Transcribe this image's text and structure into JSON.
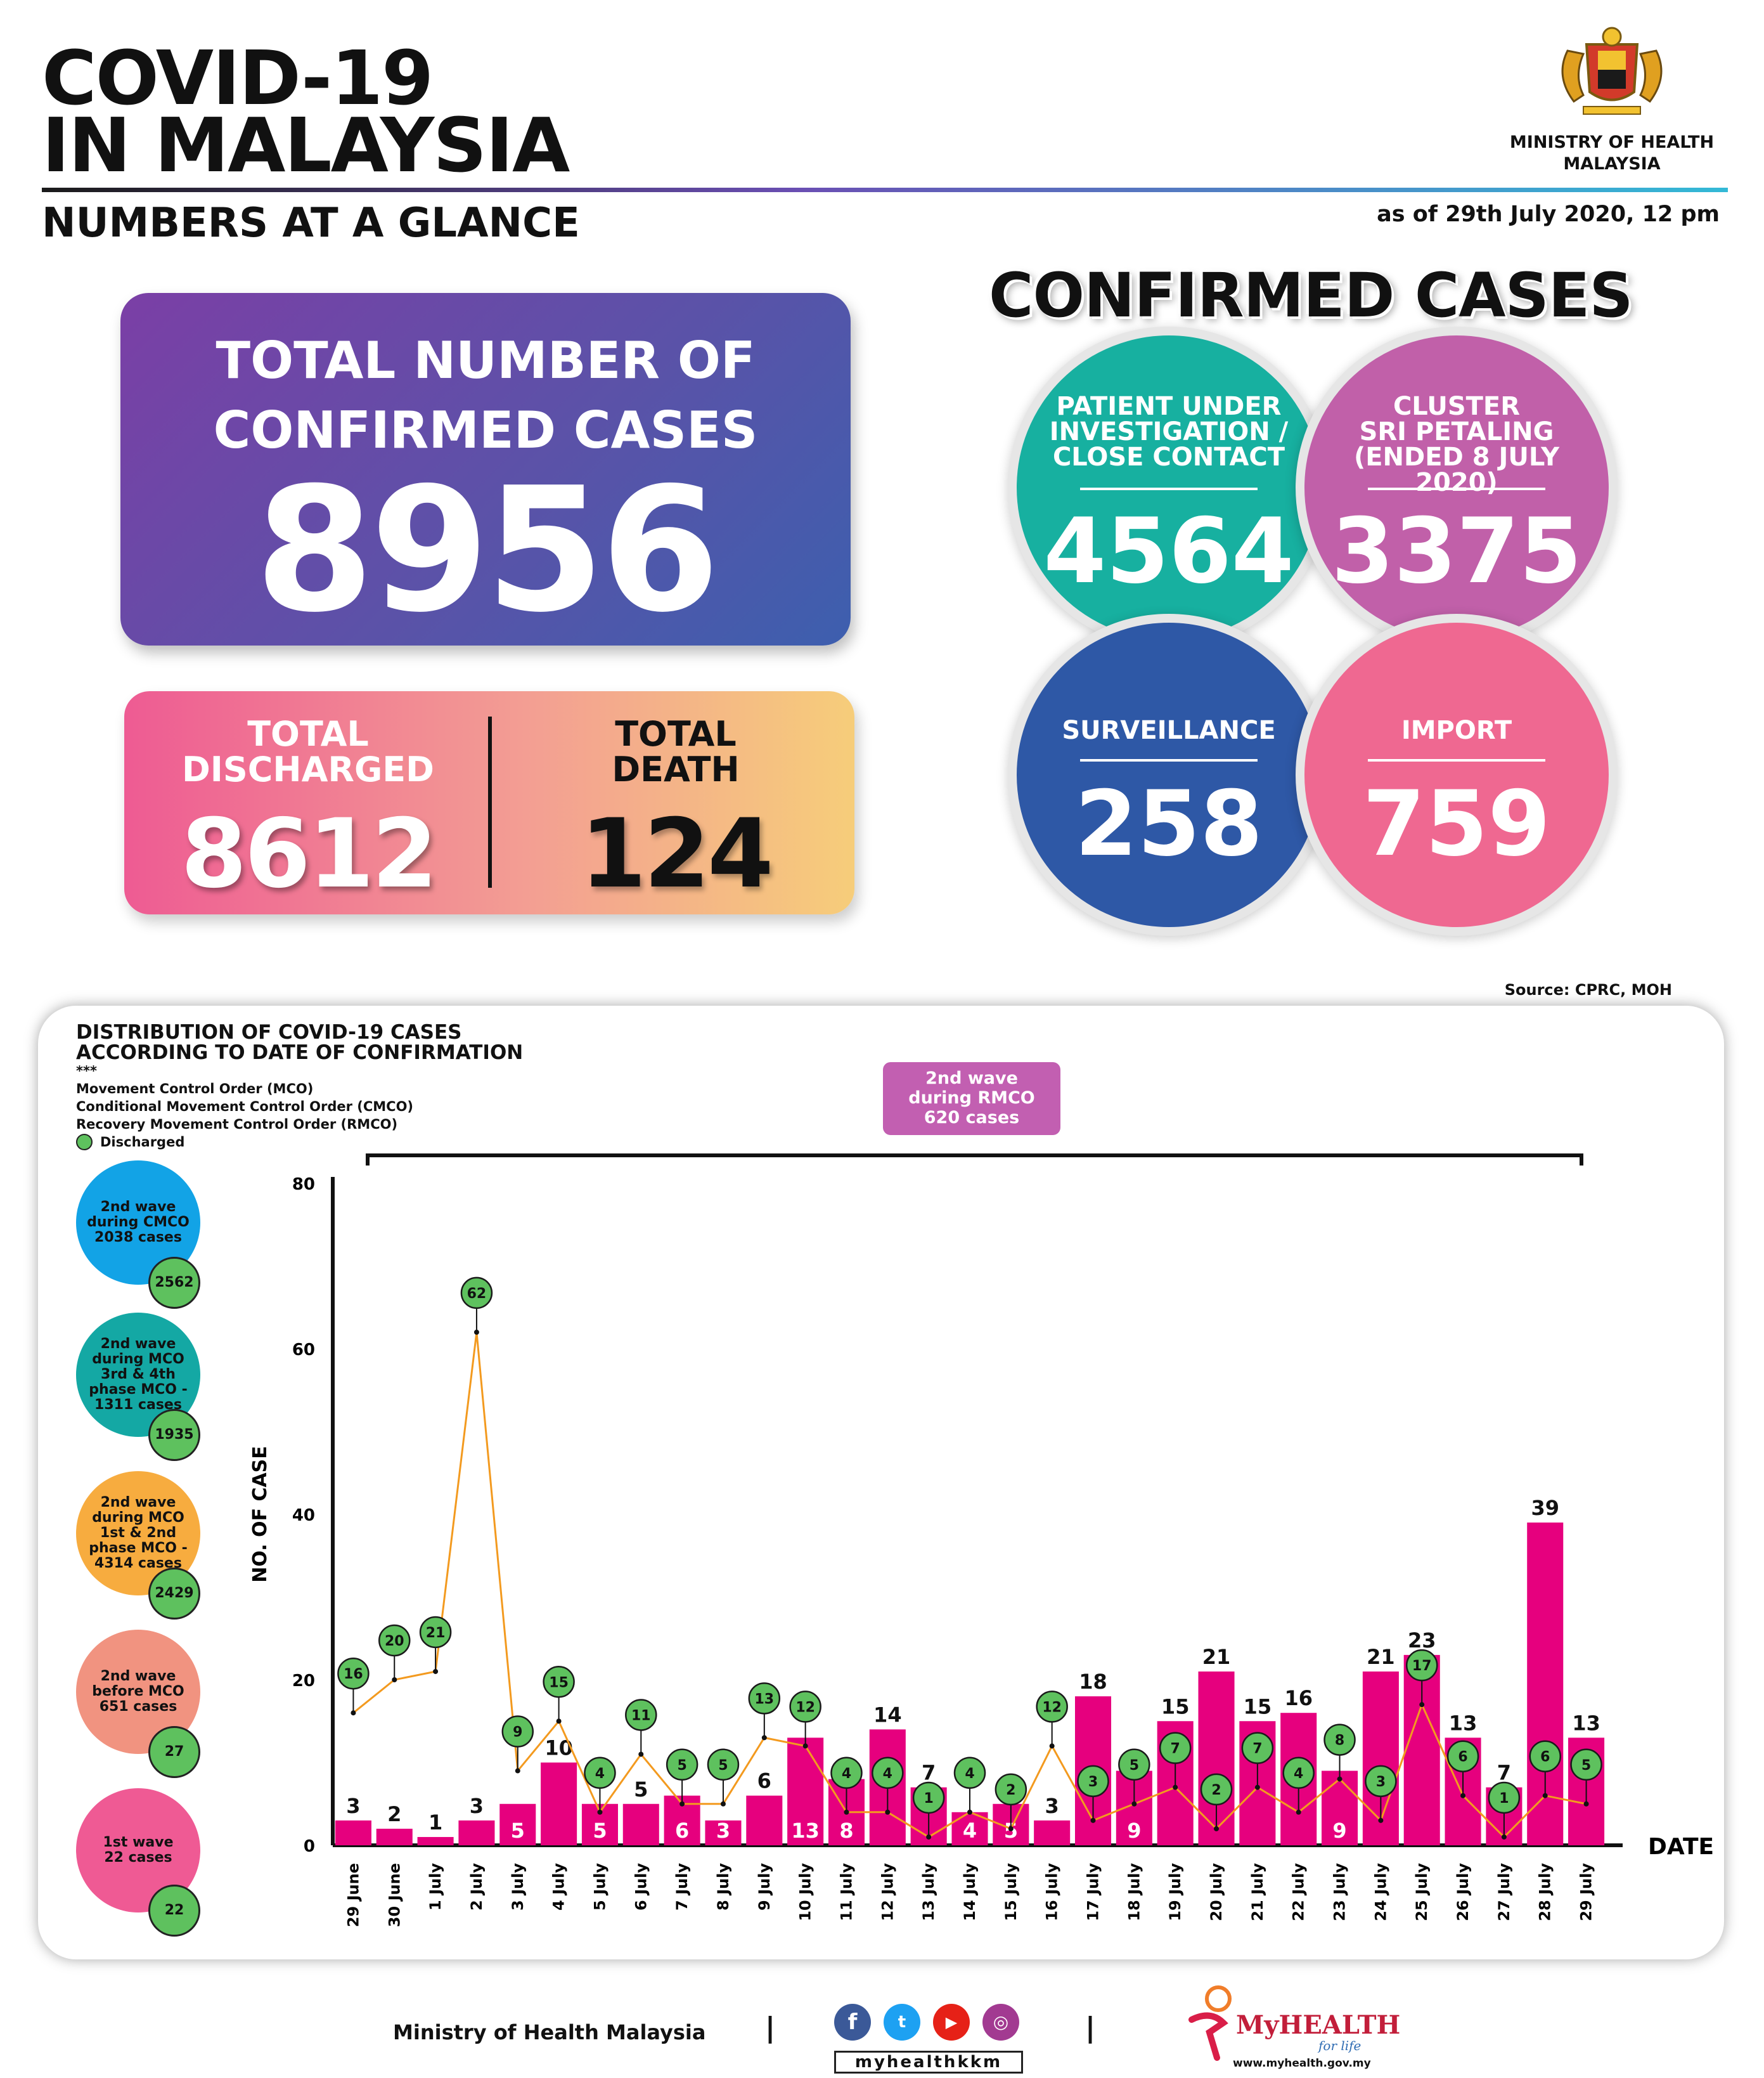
{
  "header": {
    "title_line1": "COVID-19",
    "title_line2": "IN MALAYSIA",
    "subtitle": "NUMBERS AT A GLANCE",
    "ministry_line1": "MINISTRY OF HEALTH",
    "ministry_line2": "MALAYSIA",
    "as_of": "as of 29th July 2020, 12 pm"
  },
  "totals": {
    "confirmed_label_1": "TOTAL NUMBER OF",
    "confirmed_label_2": "CONFIRMED CASES",
    "confirmed_value": "8956",
    "discharged_label_1": "TOTAL",
    "discharged_label_2": "DISCHARGED",
    "discharged_value": "8612",
    "death_label_1": "TOTAL",
    "death_label_2": "DEATH",
    "death_value": "124"
  },
  "confirmed_cases": {
    "heading": "CONFIRMED CASES",
    "pui": {
      "label_1": "PATIENT UNDER",
      "label_2": "INVESTIGATION /",
      "label_3": "CLOSE CONTACT",
      "value": "4564",
      "color": "#17b0a0"
    },
    "cluster": {
      "label_1": "CLUSTER",
      "label_2": "SRI PETALING",
      "label_3": "(ENDED 8 JULY 2020)",
      "value": "3375",
      "color": "#c160a9"
    },
    "surveillance": {
      "label": "SURVEILLANCE",
      "value": "258",
      "color": "#2e58a6"
    },
    "import": {
      "label": "IMPORT",
      "value": "759",
      "color": "#ef6891"
    }
  },
  "source": "Source: CPRC, MOH",
  "panel": {
    "title_1": "DISTRIBUTION OF COVID-19 CASES",
    "title_2": "ACCORDING TO DATE OF CONFIRMATION",
    "legend_1": "***",
    "legend_2": "Movement Control Order (MCO)",
    "legend_3": "Conditional Movement Control Order (CMCO)",
    "legend_4": "Recovery Movement Control Order (RMCO)",
    "legend_5": "Discharged",
    "rmco_1": "2nd wave",
    "rmco_2": "during RMCO",
    "rmco_3": "620 cases"
  },
  "waves": [
    {
      "line_1": "2nd wave",
      "line_2": "during CMCO",
      "line_3": "2038 cases",
      "line_4": "",
      "line_5": "",
      "discharged": "2562",
      "color": "#12a3e6"
    },
    {
      "line_1": "2nd wave",
      "line_2": "during MCO",
      "line_3": "3rd & 4th",
      "line_4": "phase MCO -",
      "line_5": "1311 cases",
      "discharged": "1935",
      "color": "#14a8a4"
    },
    {
      "line_1": "2nd wave",
      "line_2": "during MCO",
      "line_3": "1st & 2nd",
      "line_4": "phase MCO -",
      "line_5": "4314 cases",
      "discharged": "2429",
      "color": "#f7ac3f"
    },
    {
      "line_1": "2nd wave",
      "line_2": "before MCO",
      "line_3": "651 cases",
      "line_4": "",
      "line_5": "",
      "discharged": "27",
      "color": "#f19380"
    },
    {
      "line_1": "1st wave",
      "line_2": "22 cases",
      "line_3": "",
      "line_4": "",
      "line_5": "",
      "discharged": "22",
      "color": "#ef5a94"
    }
  ],
  "chart_data": {
    "type": "bar",
    "ylabel": "NO. OF CASE",
    "xlabel": "DATE",
    "ylim": [
      0,
      80
    ],
    "yticks": [
      0,
      20,
      40,
      60,
      80
    ],
    "categories": [
      "29 June",
      "30 June",
      "1 July",
      "2 July",
      "3 July",
      "4 July",
      "5 July",
      "6 July",
      "7 July",
      "8 July",
      "9 July",
      "10 July",
      "11 July",
      "12 July",
      "13 July",
      "14 July",
      "15 July",
      "16 July",
      "17 July",
      "18 July",
      "19 July",
      "20 July",
      "21 July",
      "22 July",
      "23 July",
      "24 July",
      "25 July",
      "26 July",
      "27 July",
      "28 July",
      "29 July"
    ],
    "series": [
      {
        "values": [
          3,
          2,
          1,
          3,
          5,
          10,
          5,
          5,
          6,
          3,
          6,
          13,
          8,
          14,
          7,
          4,
          5,
          3,
          18,
          9,
          15,
          21,
          15,
          16,
          9,
          21,
          23,
          13,
          7,
          39,
          13
        ],
        "color": "#e6007e"
      },
      {
        "name": "Discharged",
        "values": [
          16,
          20,
          21,
          62,
          9,
          15,
          4,
          11,
          5,
          5,
          13,
          12,
          4,
          4,
          1,
          4,
          2,
          12,
          3,
          5,
          7,
          2,
          7,
          4,
          8,
          3,
          17,
          6,
          1,
          6,
          5
        ],
        "color": "#5ec15e"
      }
    ],
    "bar_label_inside": [
      false,
      false,
      false,
      false,
      true,
      false,
      true,
      false,
      true,
      true,
      false,
      true,
      true,
      false,
      false,
      true,
      true,
      false,
      false,
      true,
      false,
      false,
      false,
      false,
      true,
      false,
      false,
      false,
      false,
      false,
      false
    ]
  },
  "footer": {
    "ministry": "Ministry of Health Malaysia",
    "sep": "|",
    "handle": "myhealthkkm",
    "brand_1": "MyHEALTH",
    "brand_2": "for life",
    "site": "www.myhealth.gov.my"
  }
}
